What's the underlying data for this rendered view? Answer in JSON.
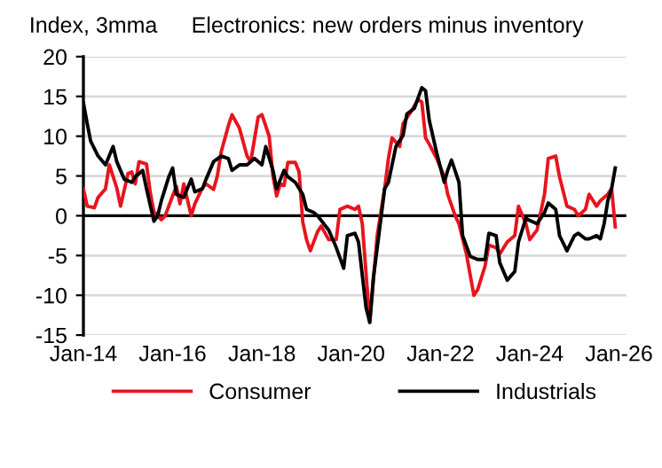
{
  "chart_data": {
    "type": "line",
    "title": "Electronics: new orders minus inventory",
    "ylabel": "Index, 3mma",
    "xlim": [
      "2014-01",
      "2026-03"
    ],
    "xticks": [
      {
        "value": "2014-01",
        "label": "Jan-14"
      },
      {
        "value": "2016-01",
        "label": "Jan-16"
      },
      {
        "value": "2018-01",
        "label": "Jan-18"
      },
      {
        "value": "2020-01",
        "label": "Jan-20"
      },
      {
        "value": "2022-01",
        "label": "Jan-22"
      },
      {
        "value": "2024-01",
        "label": "Jan-24"
      },
      {
        "value": "2026-01",
        "label": "Jan-26"
      }
    ],
    "ylim": [
      -15,
      20
    ],
    "yticks": [
      -15,
      -10,
      -5,
      0,
      5,
      10,
      15,
      20
    ],
    "grid": "y",
    "legend": "bottom",
    "line_style": "solid",
    "ref_lines": [
      {
        "axis": "y",
        "value": 0,
        "color": "#000000"
      }
    ],
    "series": [
      {
        "name": "Consumer",
        "color": "#e8141e",
        "x": [
          "2014-01",
          "2014-02",
          "2014-04",
          "2014-05",
          "2014-07",
          "2014-08",
          "2014-10",
          "2014-11",
          "2015-01",
          "2015-02",
          "2015-03",
          "2015-04",
          "2015-06",
          "2015-07",
          "2015-08",
          "2015-10",
          "2015-11",
          "2016-01",
          "2016-02",
          "2016-03",
          "2016-04",
          "2016-06",
          "2016-07",
          "2016-09",
          "2016-10",
          "2016-12",
          "2017-01",
          "2017-02",
          "2017-04",
          "2017-05",
          "2017-07",
          "2017-09",
          "2017-10",
          "2017-12",
          "2018-01",
          "2018-03",
          "2018-04",
          "2018-05",
          "2018-06",
          "2018-07",
          "2018-08",
          "2018-10",
          "2018-11",
          "2018-12",
          "2019-01",
          "2019-02",
          "2019-04",
          "2019-05",
          "2019-07",
          "2019-09",
          "2019-10",
          "2019-12",
          "2020-02",
          "2020-03",
          "2020-04",
          "2020-06",
          "2020-08",
          "2020-10",
          "2020-11",
          "2020-12",
          "2021-02",
          "2021-03",
          "2021-05",
          "2021-07",
          "2021-08",
          "2021-09",
          "2021-10",
          "2021-12",
          "2022-02",
          "2022-03",
          "2022-05",
          "2022-06",
          "2022-08",
          "2022-10",
          "2022-11",
          "2023-01",
          "2023-02",
          "2023-04",
          "2023-05",
          "2023-07",
          "2023-09",
          "2023-10",
          "2023-12",
          "2024-01",
          "2024-03",
          "2024-05",
          "2024-06",
          "2024-08",
          "2024-09",
          "2024-11",
          "2025-01",
          "2025-02",
          "2025-04",
          "2025-05",
          "2025-07",
          "2025-08",
          "2025-10",
          "2025-11",
          "2025-12"
        ],
        "values": [
          3.4,
          1.2,
          1.0,
          2.3,
          3.4,
          6.4,
          3.5,
          1.2,
          5.3,
          5.5,
          4.0,
          6.8,
          6.5,
          3.0,
          0.5,
          -0.5,
          0.0,
          2.5,
          3.7,
          1.5,
          4.0,
          0.0,
          1.5,
          3.5,
          4.0,
          3.3,
          5.0,
          8.0,
          11.3,
          12.7,
          11.0,
          7.5,
          6.8,
          12.4,
          12.7,
          10.0,
          5.0,
          2.5,
          4.0,
          3.8,
          6.7,
          6.7,
          5.5,
          -0.8,
          -3.0,
          -4.4,
          -2.0,
          -1.3,
          -3.0,
          -3.0,
          0.8,
          1.2,
          0.8,
          1.2,
          -1.0,
          -13.4,
          -2.5,
          3.4,
          7.2,
          9.8,
          8.7,
          11.6,
          13.0,
          14.6,
          14.3,
          9.8,
          9.0,
          7.2,
          4.9,
          2.7,
          0.0,
          -1.0,
          -4.8,
          -10.0,
          -9.3,
          -6.3,
          -3.7,
          -4.0,
          -4.8,
          -3.3,
          -2.5,
          1.2,
          -1.0,
          -3.0,
          -1.8,
          2.7,
          7.2,
          7.5,
          4.9,
          1.2,
          0.8,
          0.0,
          0.8,
          2.7,
          1.2,
          1.9,
          2.7,
          3.4,
          -1.4
        ]
      },
      {
        "name": "Industrials",
        "color": "#000000",
        "x": [
          "2014-01",
          "2014-02",
          "2014-03",
          "2014-05",
          "2014-07",
          "2014-09",
          "2014-10",
          "2014-12",
          "2015-02",
          "2015-03",
          "2015-05",
          "2015-06",
          "2015-08",
          "2015-09",
          "2015-10",
          "2015-12",
          "2016-01",
          "2016-02",
          "2016-04",
          "2016-06",
          "2016-07",
          "2016-09",
          "2016-10",
          "2016-12",
          "2017-02",
          "2017-04",
          "2017-05",
          "2017-07",
          "2017-09",
          "2017-11",
          "2018-01",
          "2018-02",
          "2018-04",
          "2018-05",
          "2018-07",
          "2018-08",
          "2018-10",
          "2018-12",
          "2019-01",
          "2019-03",
          "2019-04",
          "2019-07",
          "2019-09",
          "2019-11",
          "2019-12",
          "2020-02",
          "2020-03",
          "2020-05",
          "2020-06",
          "2020-07",
          "2020-09",
          "2020-10",
          "2020-11",
          "2021-01",
          "2021-03",
          "2021-04",
          "2021-06",
          "2021-08",
          "2021-09",
          "2021-10",
          "2021-12",
          "2022-02",
          "2022-03",
          "2022-04",
          "2022-06",
          "2022-07",
          "2022-09",
          "2022-11",
          "2023-01",
          "2023-02",
          "2023-04",
          "2023-05",
          "2023-07",
          "2023-09",
          "2023-10",
          "2023-12",
          "2024-01",
          "2024-03",
          "2024-05",
          "2024-06",
          "2024-08",
          "2024-09",
          "2024-11",
          "2025-01",
          "2025-02",
          "2025-04",
          "2025-05",
          "2025-07",
          "2025-08",
          "2025-09",
          "2025-10",
          "2025-11",
          "2025-12"
        ],
        "values": [
          14.2,
          11.6,
          9.4,
          7.5,
          6.4,
          8.7,
          6.8,
          4.6,
          4.2,
          4.9,
          5.7,
          3.4,
          -0.7,
          0.0,
          1.9,
          4.9,
          6.0,
          2.7,
          2.3,
          4.6,
          3.0,
          3.4,
          4.6,
          6.8,
          7.5,
          7.2,
          5.7,
          6.4,
          6.4,
          7.2,
          6.4,
          8.7,
          5.7,
          3.4,
          5.7,
          4.9,
          4.2,
          2.7,
          0.8,
          0.4,
          0.0,
          -1.8,
          -4.0,
          -6.6,
          -2.5,
          -2.2,
          -3.3,
          -11.5,
          -13.4,
          -7.8,
          -0.3,
          3.4,
          4.2,
          8.7,
          10.1,
          12.8,
          13.5,
          16.1,
          15.7,
          12.0,
          7.9,
          4.2,
          5.7,
          7.0,
          4.2,
          -2.5,
          -5.1,
          -5.5,
          -5.5,
          -2.2,
          -2.5,
          -5.9,
          -8.1,
          -7.0,
          -3.3,
          -0.3,
          -0.6,
          -1.0,
          0.4,
          1.6,
          0.8,
          -2.5,
          -4.4,
          -2.5,
          -2.2,
          -2.9,
          -2.9,
          -2.5,
          -2.9,
          -1.0,
          1.9,
          3.4,
          6.0
        ]
      }
    ]
  }
}
